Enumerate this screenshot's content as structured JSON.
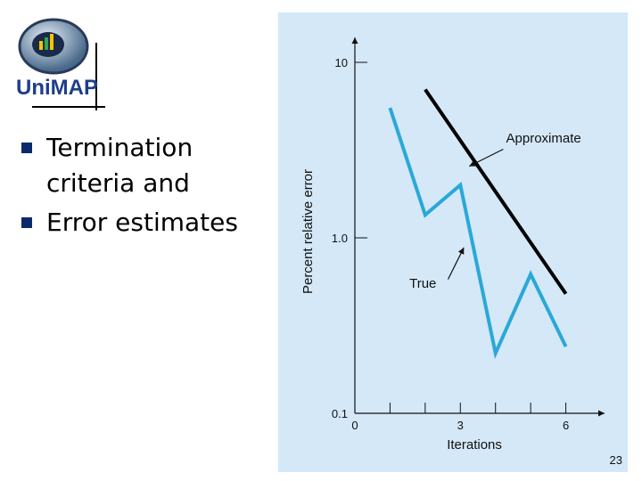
{
  "logo": {
    "text": "UniMAP"
  },
  "bullets": [
    {
      "text": "Termination criteria and"
    },
    {
      "text": "Error estimates"
    }
  ],
  "slide_number": "23",
  "colors": {
    "true_series": "#2aa8d8",
    "approximate_series": "#000000",
    "panel_bg": "#d4e8f8",
    "bullet": "#0b2a6b"
  },
  "chart_data": {
    "type": "line",
    "xlabel": "Iterations",
    "ylabel": "Percent relative error",
    "yscale": "log",
    "xlim": [
      0,
      7
    ],
    "ylim": [
      0.1,
      10
    ],
    "x_ticks": [
      1,
      2,
      3,
      4,
      5,
      6
    ],
    "x_tick_labels": [
      {
        "x": 0,
        "label": "0"
      },
      {
        "x": 3,
        "label": "3"
      },
      {
        "x": 6,
        "label": "6"
      }
    ],
    "y_tick_labels": [
      {
        "y": 10,
        "label": "10"
      },
      {
        "y": 1.0,
        "label": "1.0"
      },
      {
        "y": 0.1,
        "label": "0.1"
      }
    ],
    "series": [
      {
        "name": "True",
        "x": [
          1,
          2,
          3,
          4,
          5,
          6
        ],
        "y": [
          5.5,
          1.35,
          2.0,
          0.22,
          0.62,
          0.24
        ]
      },
      {
        "name": "Approximate",
        "x": [
          2,
          6
        ],
        "y": [
          7.0,
          0.48
        ]
      }
    ],
    "annotations": [
      {
        "text": "Approximate",
        "target_series": "Approximate"
      },
      {
        "text": "True",
        "target_series": "True"
      }
    ],
    "grid": false,
    "legend": "none"
  }
}
